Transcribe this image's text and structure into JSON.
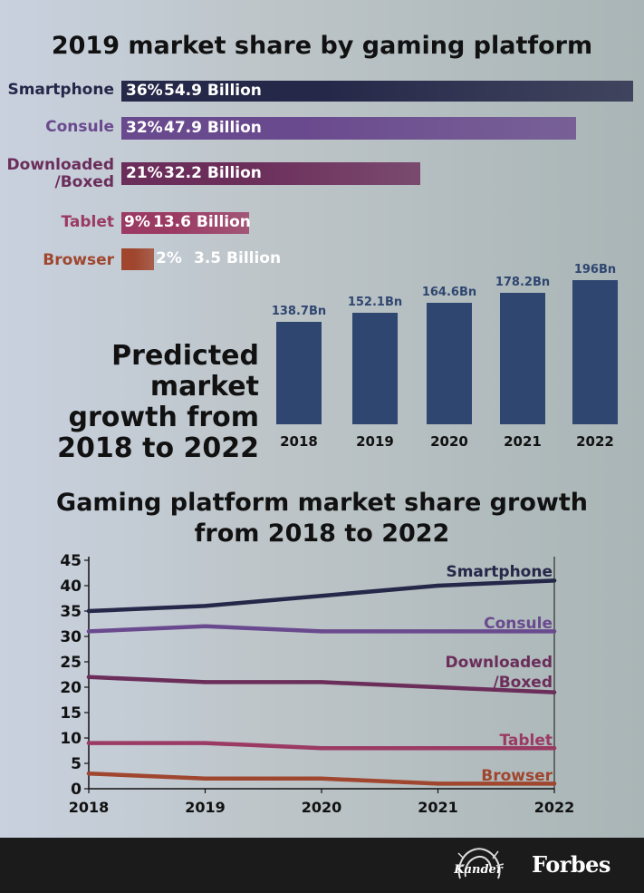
{
  "chart_data": [
    {
      "type": "bar",
      "orientation": "horizontal",
      "title": "2019 market share by gaming platform",
      "categories": [
        "Smartphone",
        "Consule",
        "Downloaded\n/Boxed",
        "Tablet",
        "Browser"
      ],
      "series": [
        {
          "values": [
            36,
            32,
            21,
            9,
            2
          ],
          "unit": "%"
        },
        {
          "values": [
            54.9,
            47.9,
            32.2,
            13.6,
            3.5
          ],
          "unit": "Billion"
        }
      ],
      "value_labels": [
        {
          "pct": "36%",
          "amount": "54.9 Billion"
        },
        {
          "pct": "32%",
          "amount": "47.9 Billion"
        },
        {
          "pct": "21%",
          "amount": "32.2 Billion"
        },
        {
          "pct": "9%",
          "amount": "13.6 Billion"
        },
        {
          "pct": "2%",
          "amount": "3.5 Billion"
        }
      ],
      "colors": [
        "#252848",
        "#6a4a8e",
        "#6b2d5a",
        "#9b3a63",
        "#a0462e"
      ]
    },
    {
      "type": "bar",
      "title": "Predicted market growth from 2018 to 2022",
      "categories": [
        "2018",
        "2019",
        "2020",
        "2021",
        "2022"
      ],
      "values": [
        138.7,
        152.1,
        164.6,
        178.2,
        196
      ],
      "value_labels": [
        "138.7Bn",
        "152.1Bn",
        "164.6Bn",
        "178.2Bn",
        "196Bn"
      ],
      "color": "#2f4670"
    },
    {
      "type": "line",
      "title": "Gaming platform market share growth\nfrom 2018 to 2022",
      "x": [
        "2018",
        "2019",
        "2020",
        "2021",
        "2022"
      ],
      "ylim": [
        0,
        45
      ],
      "yticks": [
        0,
        5,
        10,
        15,
        20,
        25,
        30,
        35,
        40,
        45
      ],
      "grid": false,
      "series": [
        {
          "name": "Smartphone",
          "values": [
            35,
            36,
            38,
            40,
            41
          ],
          "color": "#252848"
        },
        {
          "name": "Consule",
          "values": [
            31,
            32,
            31,
            31,
            31
          ],
          "color": "#6a4a8e"
        },
        {
          "name": "Downloaded\n/Boxed",
          "values": [
            22,
            21,
            21,
            20,
            19
          ],
          "color": "#6b2d5a"
        },
        {
          "name": "Tablet",
          "values": [
            9,
            9,
            8,
            8,
            8
          ],
          "color": "#9b3a63"
        },
        {
          "name": "Browser",
          "values": [
            3,
            2,
            2,
            1,
            1
          ],
          "color": "#a0462e"
        }
      ]
    }
  ],
  "footer": {
    "logo_text": "Kander",
    "brand": "Forbes"
  }
}
